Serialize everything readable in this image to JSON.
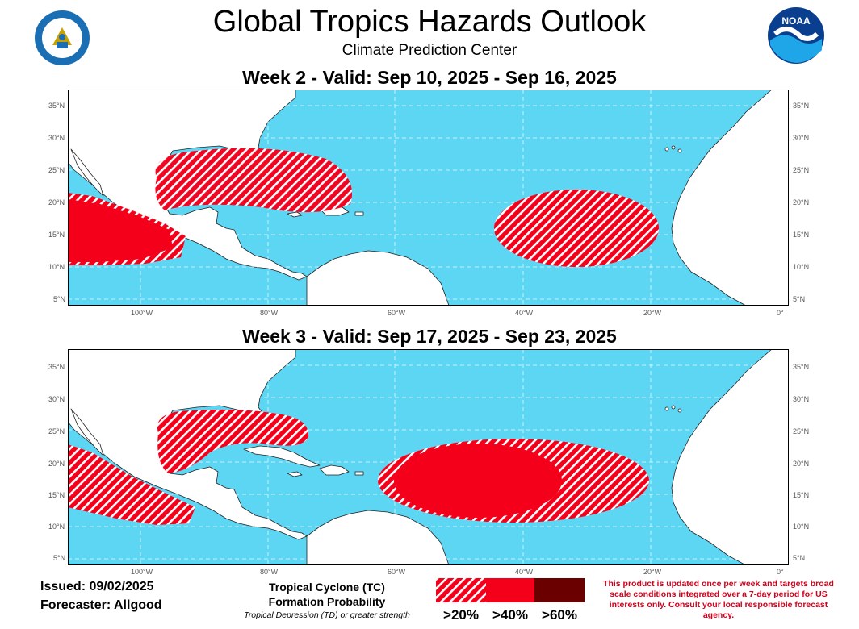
{
  "header": {
    "title": "Global Tropics Hazards Outlook",
    "subtitle": "Climate Prediction Center",
    "logo_left": "Department of Commerce seal",
    "logo_left_text": "DEPARTMENT OF COMMERCE · UNITED STATES OF AMERICA",
    "logo_right": "NOAA",
    "logo_right_text": "NOAA"
  },
  "colors": {
    "ocean": "#5dd6f4",
    "land": "#ffffff",
    "hazard_red": "#f5001b",
    "hazard_dark": "#6b0000"
  },
  "axes": {
    "lat_labels": [
      "35°N",
      "30°N",
      "25°N",
      "20°N",
      "15°N",
      "10°N",
      "5°N"
    ],
    "lon_labels": [
      "100°W",
      "80°W",
      "60°W",
      "40°W",
      "20°W",
      "0°"
    ]
  },
  "maps": [
    {
      "title": "Week 2 - Valid: Sep 10, 2025 - Sep 16, 2025",
      "areas": [
        {
          "name": "Gulf of Mexico",
          "category": ">20%"
        },
        {
          "name": "Central Atlantic",
          "category": ">20%"
        },
        {
          "name": "Eastern Pacific",
          "category": ">20%"
        },
        {
          "name": "Eastern Pacific",
          "category": ">40%"
        }
      ]
    },
    {
      "title": "Week 3 - Valid: Sep 17, 2025 - Sep 23, 2025",
      "areas": [
        {
          "name": "Gulf of Mexico",
          "category": ">20%"
        },
        {
          "name": "Main Development Region",
          "category": ">20%"
        },
        {
          "name": "Main Development Region",
          "category": ">40%"
        },
        {
          "name": "Eastern Pacific",
          "category": ">20%"
        }
      ]
    }
  ],
  "footer": {
    "issued": "Issued: 09/02/2025",
    "forecaster": "Forecaster: Allgood",
    "legend_title_1": "Tropical Cyclone (TC)",
    "legend_title_2": "Formation Probability",
    "legend_note": "Tropical Depression (TD) or greater strength",
    "legend_labels": [
      ">20%",
      ">40%",
      ">60%"
    ],
    "disclaimer": "This product is updated once per week and targets broad scale conditions integrated over a 7-day period for US interests only. Consult your local responsible forecast agency."
  }
}
